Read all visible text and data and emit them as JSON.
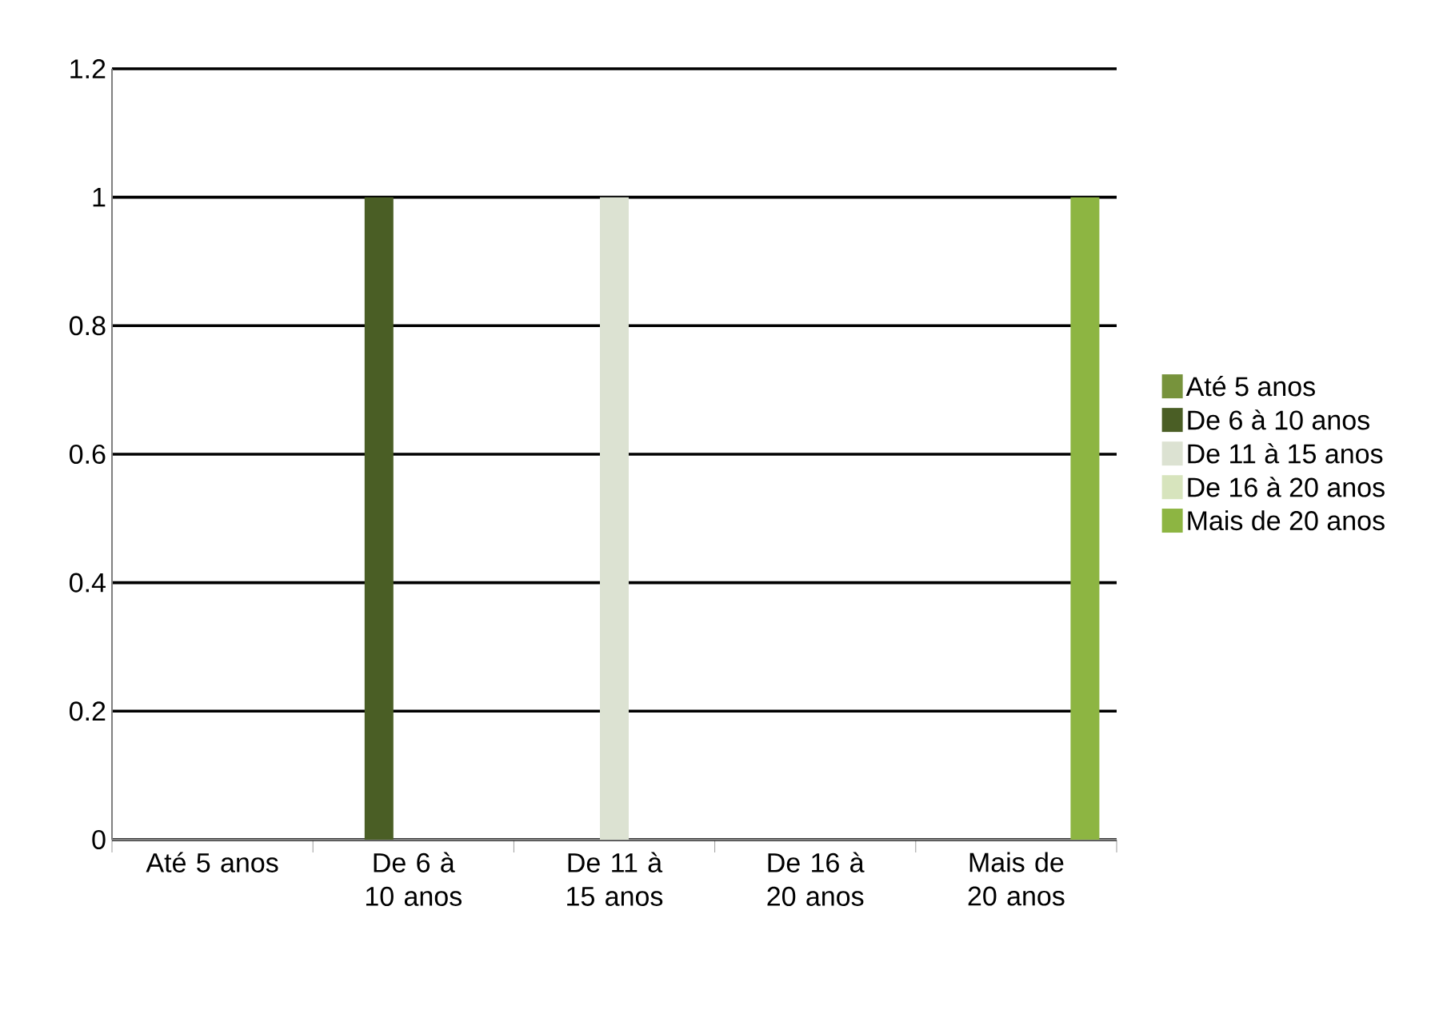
{
  "chart_data": {
    "type": "bar",
    "categories": [
      "Até 5 anos",
      "De 6 à 10 anos",
      "De 11 à 15 anos",
      "De 16 à 20 anos",
      "Mais de 20 anos"
    ],
    "series": [
      {
        "name": "Até 5 anos",
        "color": "#77933c",
        "values": [
          0,
          null,
          null,
          null,
          null
        ]
      },
      {
        "name": "De 6 à 10 anos",
        "color": "#4a5e25",
        "values": [
          null,
          1,
          null,
          null,
          null
        ]
      },
      {
        "name": "De 11 à 15 anos",
        "color": "#dce2d2",
        "values": [
          null,
          null,
          1,
          null,
          null
        ]
      },
      {
        "name": "De 16 à 20 anos",
        "color": "#d7e4bd",
        "values": [
          null,
          null,
          null,
          0,
          null
        ]
      },
      {
        "name": "Mais de 20 anos",
        "color": "#8db542",
        "values": [
          null,
          null,
          null,
          null,
          1
        ]
      }
    ],
    "ylim": [
      0,
      1.2
    ],
    "yticks": [
      0,
      0.2,
      0.4,
      0.6,
      0.8,
      1,
      1.2
    ],
    "grid": "y",
    "legend": "right"
  }
}
